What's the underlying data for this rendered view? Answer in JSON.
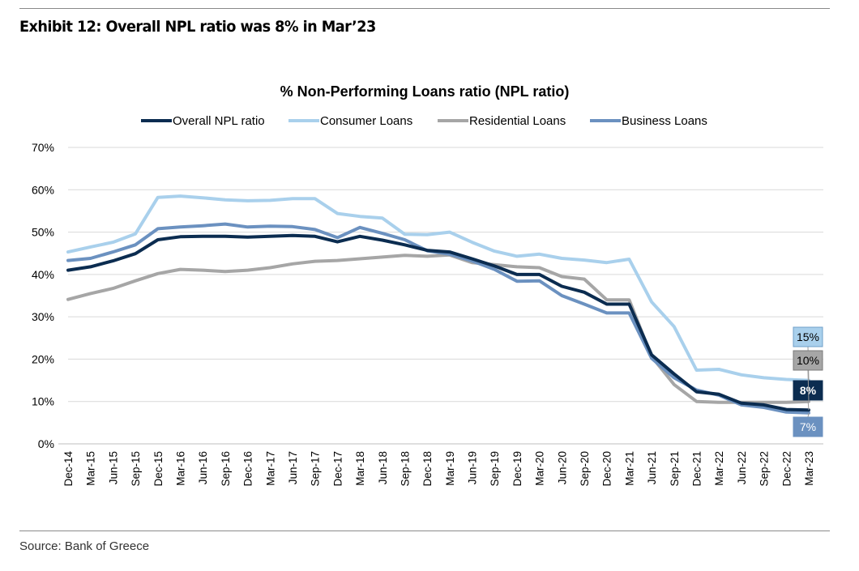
{
  "exhibit": {
    "title": "Exhibit 12: Overall NPL ratio was 8% in Mar’23",
    "source": "Source: Bank of Greece"
  },
  "colors": {
    "overall": "#0b2c50",
    "consumer": "#a9d0ec",
    "residential": "#a6a6a6",
    "business": "#6b91c0",
    "grid": "#d9d9d9"
  },
  "chart_data": {
    "type": "line",
    "title": "% Non-Performing Loans ratio (NPL ratio)",
    "xlabel": "",
    "ylabel": "",
    "ylim": [
      0,
      70
    ],
    "yticks": [
      0,
      10,
      20,
      30,
      40,
      50,
      60,
      70
    ],
    "ytick_labels": [
      "0%",
      "10%",
      "20%",
      "30%",
      "40%",
      "50%",
      "60%",
      "70%"
    ],
    "legend_position": "top",
    "grid": true,
    "categories": [
      "Dec-14",
      "Mar-15",
      "Jun-15",
      "Sep-15",
      "Dec-15",
      "Mar-16",
      "Jun-16",
      "Sep-16",
      "Dec-16",
      "Mar-17",
      "Jun-17",
      "Sep-17",
      "Dec-17",
      "Mar-18",
      "Jun-18",
      "Sep-18",
      "Dec-18",
      "Mar-19",
      "Jun-19",
      "Sep-19",
      "Dec-19",
      "Mar-20",
      "Jun-20",
      "Sep-20",
      "Dec-20",
      "Mar-21",
      "Jun-21",
      "Sep-21",
      "Dec-21",
      "Mar-22",
      "Jun-22",
      "Sep-22",
      "Dec-22",
      "Mar-23"
    ],
    "series": [
      {
        "key": "overall",
        "name": "Overall NPL ratio",
        "end_label": "8%",
        "values": [
          41,
          41.8,
          43.2,
          44.9,
          48.2,
          48.9,
          49,
          49,
          48.8,
          49,
          49.2,
          49,
          47.7,
          49,
          48.1,
          47,
          45.7,
          45.3,
          43.7,
          42,
          40,
          40,
          37.2,
          35.8,
          33,
          33,
          21,
          16.5,
          12.3,
          11.7,
          9.6,
          9.2,
          8.1,
          8
        ]
      },
      {
        "key": "consumer",
        "name": "Consumer Loans",
        "end_label": "15%",
        "values": [
          45.3,
          46.5,
          47.6,
          49.6,
          58.2,
          58.5,
          58.1,
          57.6,
          57.4,
          57.5,
          57.9,
          57.9,
          54.4,
          53.7,
          53.3,
          49.5,
          49.4,
          50,
          47.6,
          45.5,
          44.3,
          44.8,
          43.8,
          43.4,
          42.8,
          43.6,
          33.5,
          27.7,
          17.4,
          17.6,
          16.3,
          15.6,
          15.2,
          15
        ]
      },
      {
        "key": "residential",
        "name": "Residential Loans",
        "end_label": "10%",
        "values": [
          34.1,
          35.5,
          36.7,
          38.5,
          40.2,
          41.2,
          41,
          40.7,
          41,
          41.6,
          42.5,
          43.1,
          43.3,
          43.7,
          44.1,
          44.5,
          44.3,
          44.6,
          42.8,
          42.3,
          41.8,
          41.6,
          39.5,
          38.9,
          34,
          34,
          20.6,
          14,
          10,
          9.8,
          9.8,
          9.8,
          9.8,
          10
        ]
      },
      {
        "key": "business",
        "name": "Business Loans",
        "end_label": "7%",
        "values": [
          43.3,
          43.8,
          45.3,
          47,
          50.8,
          51.2,
          51.5,
          51.9,
          51.2,
          51.4,
          51.3,
          50.6,
          48.7,
          51.1,
          49.7,
          48.2,
          45.6,
          44.8,
          43.2,
          41.2,
          38.4,
          38.5,
          35,
          33,
          30.9,
          30.9,
          20.2,
          15.6,
          12.7,
          11.5,
          9.2,
          8.6,
          7.5,
          7.3
        ]
      }
    ]
  }
}
